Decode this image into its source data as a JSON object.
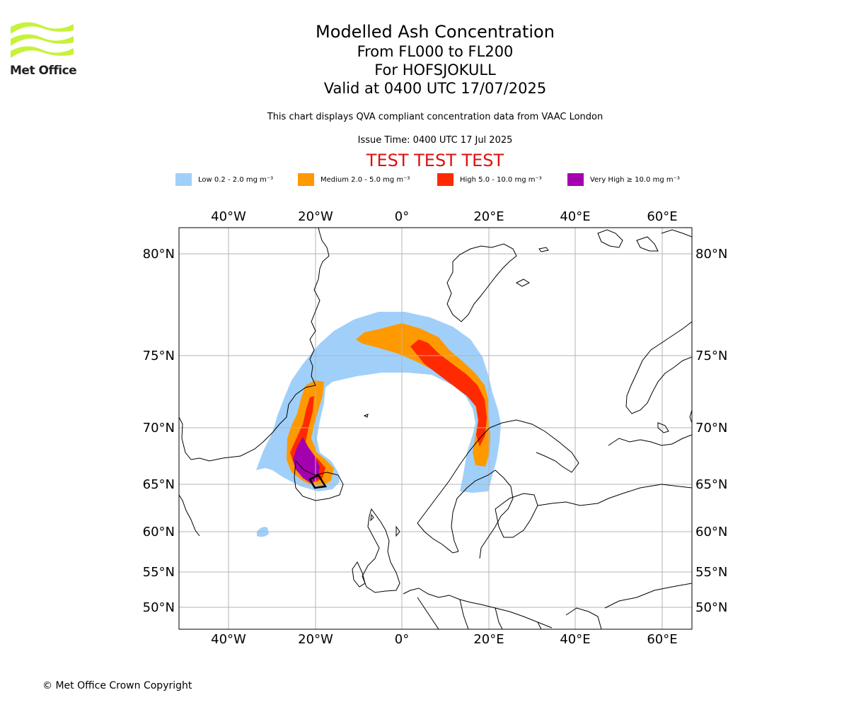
{
  "logo": {
    "name": "Met Office",
    "text": "Met Office"
  },
  "title": {
    "line1": "Modelled Ash Concentration",
    "line2": "From FL000 to FL200",
    "line3": "For HOFSJOKULL",
    "line4": "Valid at 0400 UTC 17/07/2025"
  },
  "subtitle": "This chart displays QVA compliant concentration data from VAAC London",
  "issue_time": "Issue Time: 0400 UTC 17 Jul 2025",
  "test_banner": "TEST TEST TEST",
  "legend": [
    {
      "label": "Low 0.2 - 2.0 mg m⁻³",
      "color": "#a0d0fa"
    },
    {
      "label": "Medium 2.0 - 5.0 mg m⁻³",
      "color": "#ff9900"
    },
    {
      "label": "High 5.0 - 10.0 mg m⁻³",
      "color": "#ff2a00"
    },
    {
      "label": "Very High ≥ 10.0 mg m⁻³",
      "color": "#a400b0"
    }
  ],
  "map": {
    "lon_labels": [
      "40°W",
      "20°W",
      "0°",
      "20°E",
      "40°E",
      "60°E"
    ],
    "lat_labels": [
      "80°N",
      "75°N",
      "70°N",
      "65°N",
      "60°N",
      "55°N",
      "50°N"
    ]
  },
  "copyright": "© Met Office Crown Copyright"
}
